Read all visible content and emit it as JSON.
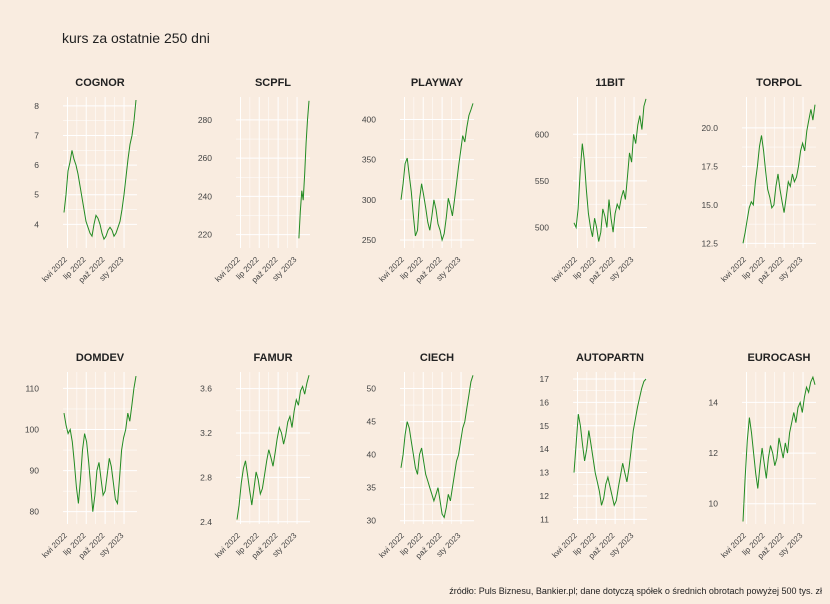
{
  "title": "kurs za ostatnie 250 dni",
  "caption": "źródło: Puls Biznesu, Bankier.pl; dane dotyczą spółek o średnich obrotach powyżej 500 tys. zł",
  "colors": {
    "background": "#f9ece0",
    "grid": "#ffffff",
    "line": "#228b22"
  },
  "chart_data": [
    {
      "type": "line",
      "title": "COGNOR",
      "ylim": [
        3.2,
        8.3
      ],
      "yticks": [
        4,
        5,
        6,
        7,
        8
      ],
      "xticks": [
        "kwi 2022",
        "lip 2022",
        "paź 2022",
        "sty 2023"
      ],
      "series": [
        {
          "x_start": "2022-03-15",
          "x_end": "2023-02-28",
          "values": [
            4.4,
            5.0,
            5.8,
            6.1,
            6.5,
            6.2,
            6.0,
            5.7,
            5.3,
            4.9,
            4.5,
            4.1,
            3.9,
            3.7,
            3.6,
            4.0,
            4.3,
            4.2,
            4.0,
            3.7,
            3.5,
            3.6,
            3.8,
            3.9,
            3.8,
            3.6,
            3.7,
            3.9,
            4.1,
            4.5,
            5.0,
            5.6,
            6.2,
            6.7,
            7.0,
            7.5,
            8.2
          ]
        }
      ]
    },
    {
      "type": "line",
      "title": "SCPFL",
      "ylim": [
        213,
        292
      ],
      "yticks": [
        220,
        240,
        260,
        280
      ],
      "xticks": [
        "kwi 2022",
        "lip 2022",
        "paź 2022",
        "sty 2023"
      ],
      "series": [
        {
          "x_start": "2023-01-10",
          "x_end": "2023-02-28",
          "values": [
            218,
            232,
            243,
            238,
            252,
            268,
            280,
            290
          ]
        }
      ]
    },
    {
      "type": "line",
      "title": "PLAYWAY",
      "ylim": [
        240,
        428
      ],
      "yticks": [
        250,
        300,
        350,
        400
      ],
      "xticks": [
        "kwi 2022",
        "lip 2022",
        "paź 2022",
        "sty 2023"
      ],
      "series": [
        {
          "x_start": "2022-03-15",
          "x_end": "2023-02-28",
          "values": [
            300,
            320,
            345,
            352,
            330,
            310,
            280,
            255,
            262,
            300,
            320,
            306,
            290,
            272,
            262,
            280,
            300,
            288,
            270,
            262,
            250,
            258,
            278,
            302,
            292,
            280,
            300,
            320,
            342,
            360,
            380,
            372,
            390,
            405,
            412,
            420
          ]
        }
      ]
    },
    {
      "type": "line",
      "title": "11BIT",
      "ylim": [
        478,
        640
      ],
      "yticks": [
        500,
        550,
        600
      ],
      "xticks": [
        "kwi 2022",
        "lip 2022",
        "paź 2022",
        "sty 2023"
      ],
      "series": [
        {
          "x_start": "2022-03-15",
          "x_end": "2023-02-28",
          "values": [
            505,
            500,
            520,
            560,
            590,
            572,
            540,
            515,
            500,
            490,
            510,
            500,
            485,
            495,
            520,
            512,
            500,
            530,
            510,
            495,
            515,
            525,
            520,
            532,
            540,
            530,
            555,
            580,
            570,
            600,
            590,
            610,
            620,
            605,
            630,
            638
          ]
        }
      ]
    },
    {
      "type": "line",
      "title": "TORPOL",
      "ylim": [
        12.2,
        22.0
      ],
      "yticks": [
        12.5,
        15.0,
        17.5,
        20.0
      ],
      "xticks": [
        "kwi 2022",
        "lip 2022",
        "paź 2022",
        "sty 2023"
      ],
      "series": [
        {
          "x_start": "2022-03-15",
          "x_end": "2023-02-28",
          "values": [
            12.5,
            13.2,
            14.0,
            14.8,
            15.2,
            15.0,
            16.5,
            17.5,
            18.8,
            19.5,
            18.5,
            17.2,
            16.0,
            15.5,
            14.8,
            15.0,
            16.2,
            17.0,
            16.0,
            15.2,
            14.5,
            15.5,
            16.5,
            16.2,
            17.0,
            16.5,
            16.8,
            17.5,
            18.5,
            19.0,
            18.5,
            19.8,
            20.5,
            21.2,
            20.5,
            21.5
          ]
        }
      ]
    },
    {
      "type": "line",
      "title": "DOMDEV",
      "ylim": [
        77,
        114
      ],
      "yticks": [
        80,
        90,
        100,
        110
      ],
      "xticks": [
        "kwi 2022",
        "lip 2022",
        "paź 2022",
        "sty 2023"
      ],
      "series": [
        {
          "x_start": "2022-03-15",
          "x_end": "2023-02-28",
          "values": [
            104,
            101,
            99,
            100,
            97,
            92,
            86,
            82,
            88,
            95,
            99,
            97,
            92,
            86,
            80,
            84,
            90,
            92,
            88,
            84,
            85,
            89,
            93,
            91,
            87,
            83,
            82,
            88,
            95,
            98,
            100,
            104,
            102,
            106,
            110,
            113
          ]
        }
      ]
    },
    {
      "type": "line",
      "title": "FAMUR",
      "ylim": [
        2.38,
        3.75
      ],
      "yticks": [
        2.4,
        2.8,
        3.2,
        3.6
      ],
      "xticks": [
        "kwi 2022",
        "lip 2022",
        "paź 2022",
        "sty 2023"
      ],
      "series": [
        {
          "x_start": "2022-03-15",
          "x_end": "2023-02-28",
          "values": [
            2.42,
            2.55,
            2.75,
            2.88,
            2.95,
            2.82,
            2.68,
            2.55,
            2.7,
            2.85,
            2.78,
            2.65,
            2.7,
            2.82,
            2.95,
            3.05,
            2.98,
            2.9,
            3.02,
            3.15,
            3.25,
            3.2,
            3.1,
            3.18,
            3.3,
            3.35,
            3.25,
            3.4,
            3.5,
            3.45,
            3.58,
            3.62,
            3.55,
            3.65,
            3.72
          ]
        }
      ]
    },
    {
      "type": "line",
      "title": "CIECH",
      "ylim": [
        29.5,
        52.5
      ],
      "yticks": [
        30,
        35,
        40,
        45,
        50
      ],
      "xticks": [
        "kwi 2022",
        "lip 2022",
        "paź 2022",
        "sty 2023"
      ],
      "series": [
        {
          "x_start": "2022-03-15",
          "x_end": "2023-02-28",
          "values": [
            38,
            40,
            43,
            45,
            44,
            42,
            40,
            38,
            37,
            40,
            41,
            39,
            37,
            36,
            35,
            34,
            33,
            34,
            35,
            33,
            31,
            30.5,
            32,
            34,
            33,
            35,
            37,
            39,
            40,
            42,
            44,
            45,
            47,
            49,
            51,
            52
          ]
        }
      ]
    },
    {
      "type": "line",
      "title": "AUTOPARTN",
      "ylim": [
        10.8,
        17.3
      ],
      "yticks": [
        11,
        12,
        13,
        14,
        15,
        16,
        17
      ],
      "xticks": [
        "kwi 2022",
        "lip 2022",
        "paź 2022",
        "sty 2023"
      ],
      "series": [
        {
          "x_start": "2022-03-15",
          "x_end": "2023-02-28",
          "values": [
            13.0,
            14.2,
            15.5,
            15.0,
            14.2,
            13.5,
            14.0,
            14.8,
            14.2,
            13.6,
            13.0,
            12.6,
            12.2,
            11.6,
            11.9,
            12.5,
            12.8,
            12.4,
            12.0,
            11.6,
            11.8,
            12.4,
            12.9,
            13.4,
            13.0,
            12.6,
            13.2,
            14.0,
            14.8,
            15.3,
            15.8,
            16.2,
            16.6,
            16.9,
            17.0
          ]
        }
      ]
    },
    {
      "type": "line",
      "title": "EUROCASH",
      "ylim": [
        9.2,
        15.2
      ],
      "yticks": [
        10,
        12,
        14
      ],
      "xticks": [
        "kwi 2022",
        "lip 2022",
        "paź 2022",
        "sty 2023"
      ],
      "series": [
        {
          "x_start": "2022-03-15",
          "x_end": "2023-02-28",
          "values": [
            9.3,
            11.0,
            12.5,
            13.4,
            12.8,
            12.0,
            11.2,
            10.6,
            11.5,
            12.2,
            11.6,
            11.0,
            11.8,
            12.3,
            12.0,
            11.5,
            11.8,
            12.6,
            12.2,
            11.8,
            12.4,
            12.0,
            12.8,
            13.2,
            13.6,
            13.2,
            13.8,
            14.0,
            13.6,
            14.2,
            14.6,
            14.4,
            14.8,
            15.0,
            14.7
          ]
        }
      ]
    }
  ]
}
